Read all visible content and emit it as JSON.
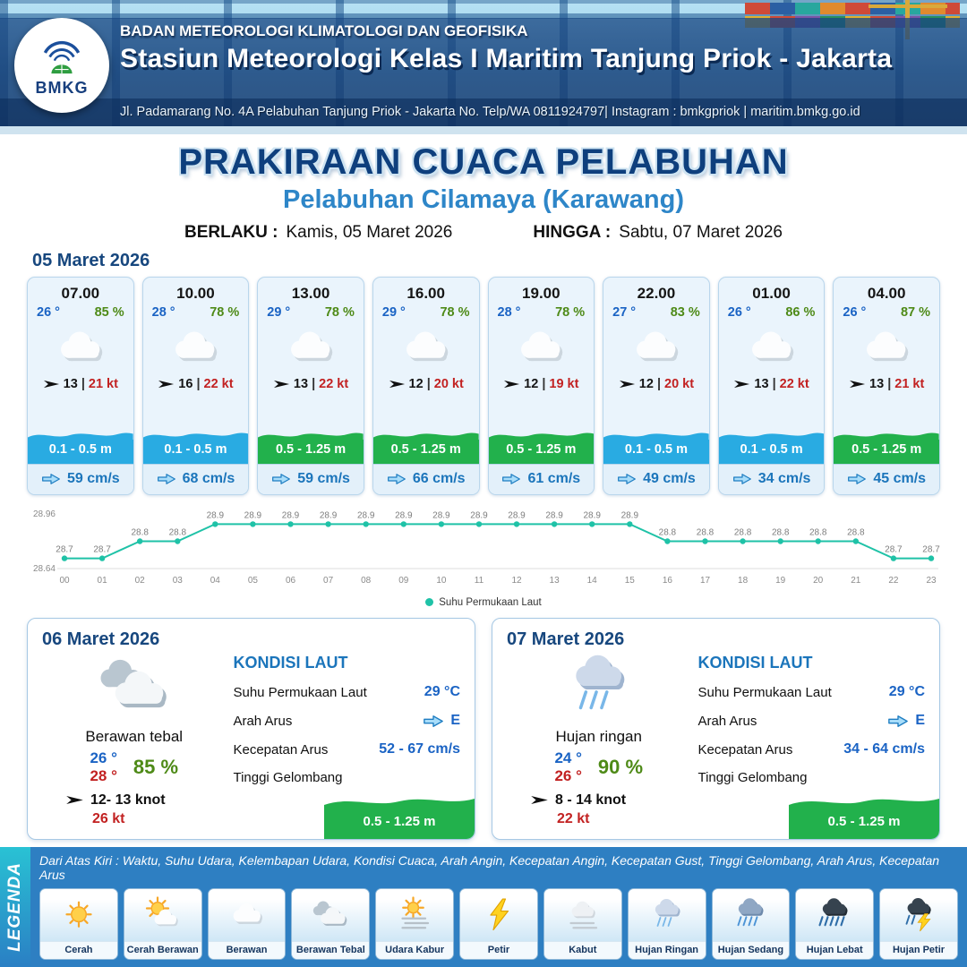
{
  "header": {
    "logo_text": "BMKG",
    "agency": "BADAN METEOROLOGI KLIMATOLOGI DAN GEOFISIKA",
    "station": "Stasiun Meteorologi Kelas I Maritim Tanjung Priok - Jakarta",
    "address": "Jl. Padamarang No. 4A Pelabuhan Tanjung Priok - Jakarta No. Telp/WA 0811924797| Instagram : bmkgpriok | maritim.bmkg.go.id"
  },
  "title": {
    "main": "PRAKIRAAN CUACA PELABUHAN",
    "sub": "Pelabuhan Cilamaya (Karawang)",
    "valid_from_label": "BERLAKU :",
    "valid_from": "Kamis, 05 Maret 2026",
    "valid_to_label": "HINGGA :",
    "valid_to": "Sabtu, 07 Maret 2026"
  },
  "hourly": {
    "date": "05 Maret 2026",
    "wind_unit_divider": "|",
    "cards": [
      {
        "time": "07.00",
        "temp": "26 °",
        "humidity": "85 %",
        "icon": "berawan",
        "wind": "13",
        "gust": "21 kt",
        "wave": "0.1 - 0.5 m",
        "wave_color": "#29abe2",
        "current": "59 cm/s"
      },
      {
        "time": "10.00",
        "temp": "28 °",
        "humidity": "78 %",
        "icon": "berawan",
        "wind": "16",
        "gust": "22 kt",
        "wave": "0.1 - 0.5 m",
        "wave_color": "#29abe2",
        "current": "68 cm/s"
      },
      {
        "time": "13.00",
        "temp": "29 °",
        "humidity": "78 %",
        "icon": "berawan",
        "wind": "13",
        "gust": "22 kt",
        "wave": "0.5 - 1.25 m",
        "wave_color": "#22b14c",
        "current": "59 cm/s"
      },
      {
        "time": "16.00",
        "temp": "29 °",
        "humidity": "78 %",
        "icon": "berawan",
        "wind": "12",
        "gust": "20 kt",
        "wave": "0.5 - 1.25 m",
        "wave_color": "#22b14c",
        "current": "66 cm/s"
      },
      {
        "time": "19.00",
        "temp": "28 °",
        "humidity": "78 %",
        "icon": "berawan",
        "wind": "12",
        "gust": "19 kt",
        "wave": "0.5 - 1.25 m",
        "wave_color": "#22b14c",
        "current": "61 cm/s"
      },
      {
        "time": "22.00",
        "temp": "27 °",
        "humidity": "83 %",
        "icon": "berawan",
        "wind": "12",
        "gust": "20 kt",
        "wave": "0.1 - 0.5 m",
        "wave_color": "#29abe2",
        "current": "49 cm/s"
      },
      {
        "time": "01.00",
        "temp": "26 °",
        "humidity": "86 %",
        "icon": "berawan",
        "wind": "13",
        "gust": "22 kt",
        "wave": "0.1 - 0.5 m",
        "wave_color": "#29abe2",
        "current": "34 cm/s"
      },
      {
        "time": "04.00",
        "temp": "26 °",
        "humidity": "87 %",
        "icon": "berawan",
        "wind": "13",
        "gust": "21 kt",
        "wave": "0.5 - 1.25 m",
        "wave_color": "#22b14c",
        "current": "45 cm/s"
      }
    ]
  },
  "chart_data": {
    "type": "line",
    "series": [
      {
        "name": "Suhu Permukaan Laut",
        "values": [
          28.7,
          28.7,
          28.8,
          28.8,
          28.9,
          28.9,
          28.9,
          28.9,
          28.9,
          28.9,
          28.9,
          28.9,
          28.9,
          28.9,
          28.9,
          28.9,
          28.8,
          28.8,
          28.8,
          28.8,
          28.8,
          28.8,
          28.7,
          28.7
        ]
      }
    ],
    "x": [
      "00",
      "01",
      "02",
      "03",
      "04",
      "05",
      "06",
      "07",
      "08",
      "09",
      "10",
      "11",
      "12",
      "13",
      "14",
      "15",
      "16",
      "17",
      "18",
      "19",
      "20",
      "21",
      "22",
      "23"
    ],
    "ylim": [
      28.64,
      28.96
    ],
    "yticks": [
      "28.96",
      "28.64"
    ],
    "line_color": "#1fc2a7",
    "grid": false,
    "legend_position": "bottom"
  },
  "daily": [
    {
      "date": "06 Maret 2026",
      "icon": "berawan-tebal",
      "condition": "Berawan tebal",
      "temp_min": "26 °",
      "temp_max": "28 °",
      "humidity": "85 %",
      "wind": "12- 13 knot",
      "gust": "26 kt",
      "sea_heading": "KONDISI LAUT",
      "sst_label": "Suhu Permukaan Laut",
      "sst": "29 °C",
      "dir_label": "Arah Arus",
      "dir": "E",
      "current_label": "Kecepatan Arus",
      "current": "52 - 67 cm/s",
      "wave_label": "Tinggi Gelombang",
      "wave": "0.5 - 1.25 m",
      "wave_color": "#22b14c"
    },
    {
      "date": "07 Maret 2026",
      "icon": "hujan-ringan",
      "condition": "Hujan ringan",
      "temp_min": "24 °",
      "temp_max": "26 °",
      "humidity": "90 %",
      "wind": "8 - 14 knot",
      "gust": "22 kt",
      "sea_heading": "KONDISI LAUT",
      "sst_label": "Suhu Permukaan Laut",
      "sst": "29 °C",
      "dir_label": "Arah Arus",
      "dir": "E",
      "current_label": "Kecepatan Arus",
      "current": "34 - 64 cm/s",
      "wave_label": "Tinggi Gelombang",
      "wave": "0.5 - 1.25 m",
      "wave_color": "#22b14c"
    }
  ],
  "legend": {
    "title": "LEGENDA",
    "description": "Dari Atas Kiri : Waktu, Suhu Udara, Kelembapan Udara, Kondisi Cuaca, Arah Angin, Kecepatan Angin, Kecepatan Gust, Tinggi Gelombang, Arah Arus, Kecepatan Arus",
    "items": [
      {
        "label": "Cerah",
        "icon": "cerah"
      },
      {
        "label": "Cerah Berawan",
        "icon": "cerah-berawan"
      },
      {
        "label": "Berawan",
        "icon": "berawan"
      },
      {
        "label": "Berawan Tebal",
        "icon": "berawan-tebal"
      },
      {
        "label": "Udara Kabur",
        "icon": "udara-kabur"
      },
      {
        "label": "Petir",
        "icon": "petir"
      },
      {
        "label": "Kabut",
        "icon": "kabut"
      },
      {
        "label": "Hujan Ringan",
        "icon": "hujan-ringan"
      },
      {
        "label": "Hujan Sedang",
        "icon": "hujan-sedang"
      },
      {
        "label": "Hujan Lebat",
        "icon": "hujan-lebat"
      },
      {
        "label": "Hujan Petir",
        "icon": "hujan-petir"
      }
    ]
  }
}
